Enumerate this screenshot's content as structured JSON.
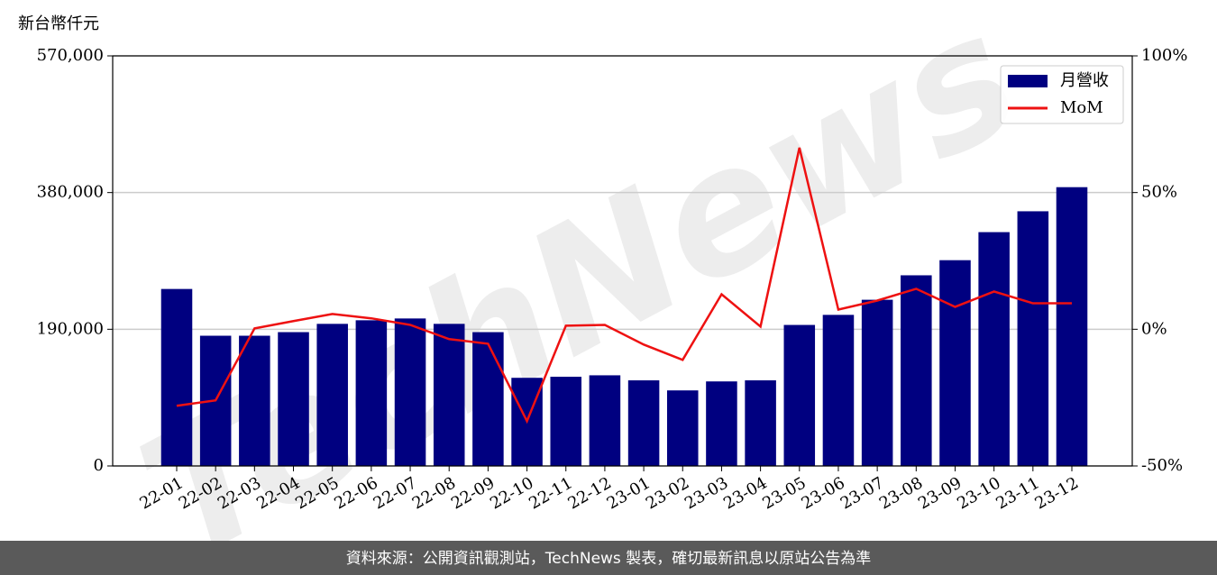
{
  "chart_data": {
    "type": "bar",
    "y_label": "新台幣仟元",
    "watermark": "TechNews",
    "footer": "資料來源：公開資訊觀測站，TechNews 製表，確切最新訊息以原站公告為準",
    "categories": [
      "22-01",
      "22-02",
      "22-03",
      "22-04",
      "22-05",
      "22-06",
      "22-07",
      "22-08",
      "22-09",
      "22-10",
      "22-11",
      "22-12",
      "23-01",
      "23-02",
      "23-03",
      "23-04",
      "23-05",
      "23-06",
      "23-07",
      "23-08",
      "23-09",
      "23-10",
      "23-11",
      "23-12"
    ],
    "series": [
      {
        "name": "月營收",
        "type": "bar",
        "color": "#000080",
        "values": [
          246000,
          181000,
          181000,
          186000,
          197500,
          202500,
          205000,
          197500,
          186000,
          122500,
          124000,
          126000,
          119000,
          105000,
          117500,
          119000,
          196000,
          210000,
          231000,
          265000,
          286000,
          325000,
          354000,
          387500
        ]
      },
      {
        "name": "MoM",
        "type": "line",
        "color": "#ee1111",
        "axis": "y2",
        "values": [
          -28,
          -26,
          0.3,
          3,
          5.6,
          4,
          1.6,
          -3.6,
          -5.3,
          -33.6,
          1.3,
          1.6,
          -5.6,
          -11.2,
          12.8,
          1,
          66.4,
          7.2,
          10.5,
          14.8,
          8.2,
          13.8,
          9.5,
          9.5
        ]
      }
    ],
    "ylim": [
      0,
      570000
    ],
    "yticks": [
      0,
      {
        "value": 190000,
        "label": "190,000"
      },
      {
        "value": 380000,
        "label": "380,000"
      },
      {
        "value": 570000,
        "label": "570,000"
      }
    ],
    "y2lim": [
      -50,
      100
    ],
    "y2ticks": [
      {
        "value": -50,
        "label": "-50%"
      },
      {
        "value": 0,
        "label": "0%"
      },
      {
        "value": 50,
        "label": "50%"
      },
      {
        "value": 100,
        "label": "100%"
      }
    ],
    "grid": true,
    "legend": "upper right"
  }
}
